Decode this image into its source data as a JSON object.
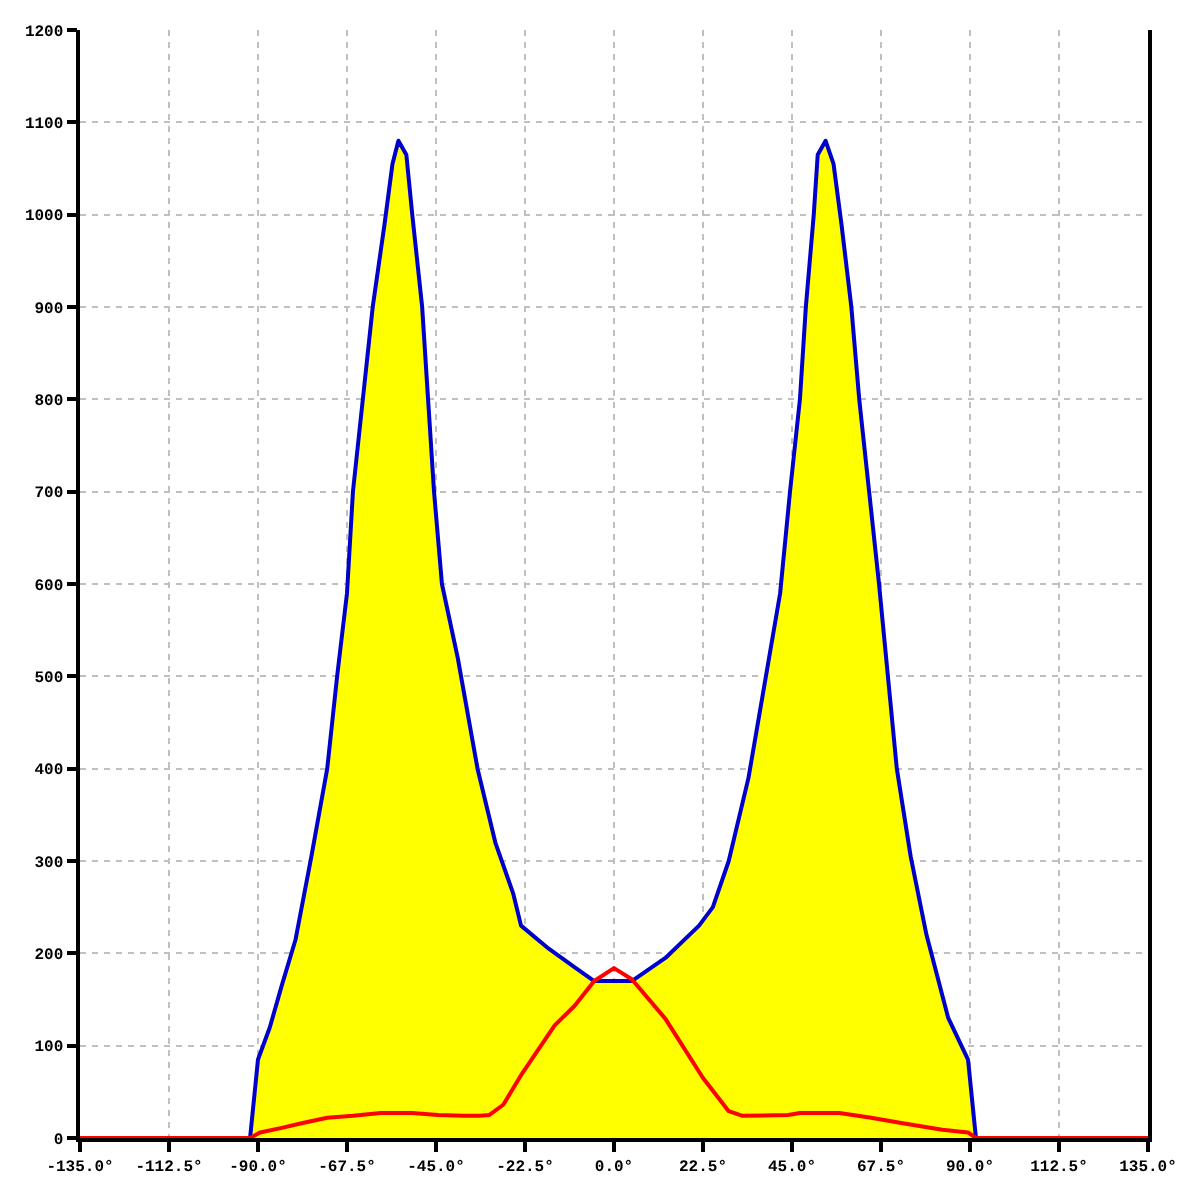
{
  "chart_data": {
    "type": "area",
    "series": [
      {
        "color": "#ffff00",
        "x": [
          -92,
          -90,
          -87,
          -84,
          -80.5,
          -76.5,
          -72.5,
          -70,
          -67.5,
          -66,
          -63.5,
          -61,
          -58,
          -56,
          -54.5,
          -52.5,
          -51,
          -48.5,
          -47,
          -45.5,
          -43.5,
          -39.5,
          -34.5,
          -30,
          -25.5,
          -23.5,
          -16.5,
          -10,
          -5,
          0,
          4.5,
          13,
          21.5,
          25,
          29,
          34,
          38,
          42,
          44.5,
          47,
          48.5,
          50.5,
          51.5,
          53.5,
          55.5,
          57.5,
          60,
          62,
          64.5,
          67,
          71.5,
          75,
          79,
          84.5,
          89.5,
          91.5
        ],
        "values": [
          0,
          85,
          120,
          165,
          215,
          305,
          400,
          500,
          590,
          700,
          800,
          900,
          990,
          1055,
          1080,
          1065,
          1000,
          900,
          800,
          700,
          600,
          520,
          400,
          320,
          265,
          230,
          205,
          185,
          170,
          170,
          170,
          195,
          230,
          250,
          300,
          390,
          490,
          590,
          700,
          800,
          900,
          1000,
          1065,
          1080,
          1055,
          990,
          900,
          800,
          700,
          600,
          400,
          305,
          220,
          130,
          85,
          0
        ]
      },
      {
        "type": "line",
        "color": "#ff0000",
        "x": [
          -135,
          -92,
          -89.5,
          -84,
          -79,
          -72.5,
          -66,
          -59,
          -51,
          -44.5,
          -38,
          -34,
          -31.5,
          -28,
          -23.5,
          -15,
          -10,
          -5,
          0,
          4.5,
          13,
          22.5,
          29,
          32.5,
          44,
          47,
          57,
          65,
          73,
          83,
          89.5,
          91.5,
          135
        ],
        "values": [
          0,
          0,
          6,
          11,
          16,
          22,
          24,
          27,
          27,
          25,
          24,
          24,
          25,
          36,
          68,
          122,
          143,
          170,
          184,
          172,
          129,
          65,
          29,
          24,
          25,
          27,
          27,
          22,
          16,
          9,
          6,
          0,
          0
        ]
      }
    ],
    "xlim": [
      -135,
      135
    ],
    "ylim": [
      0,
      1200
    ],
    "xticks": [
      {
        "value": -135,
        "label": "-135.0°"
      },
      {
        "value": -112.5,
        "label": "-112.5°"
      },
      {
        "value": -90,
        "label": "-90.0°"
      },
      {
        "value": -67.5,
        "label": "-67.5°"
      },
      {
        "value": -45,
        "label": "-45.0°"
      },
      {
        "value": -22.5,
        "label": "-22.5°"
      },
      {
        "value": 0,
        "label": "0.0°"
      },
      {
        "value": 22.5,
        "label": "22.5°"
      },
      {
        "value": 45,
        "label": "45.0°"
      },
      {
        "value": 67.5,
        "label": "67.5°"
      },
      {
        "value": 90,
        "label": "90.0°"
      },
      {
        "value": 112.5,
        "label": "112.5°"
      },
      {
        "value": 135,
        "label": "135.0°"
      }
    ],
    "yticks": [
      0,
      100,
      200,
      300,
      400,
      500,
      600,
      700,
      800,
      900,
      1000,
      1100,
      1200
    ],
    "grid": true,
    "line_style": "solid",
    "marker": "none"
  }
}
